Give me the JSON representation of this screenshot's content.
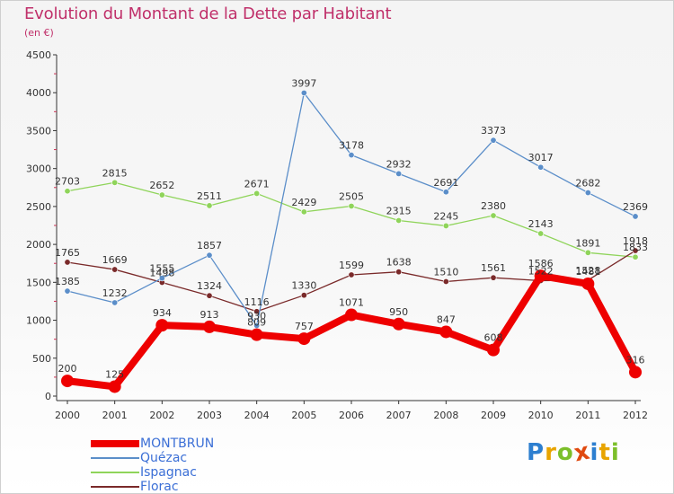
{
  "title": "Evolution du Montant de la Dette par Habitant",
  "subtitle": "(en €)",
  "logo": {
    "letters": [
      "P",
      "r",
      "o",
      "x",
      "i",
      "t",
      "i"
    ],
    "colors": [
      "#2d7fd0",
      "#e8a400",
      "#7cbf2a",
      "#e04a10",
      "#2d7fd0",
      "#e8a400",
      "#7cbf2a"
    ]
  },
  "chart_data": {
    "type": "line",
    "x": [
      "2000",
      "2001",
      "2002",
      "2003",
      "2004",
      "2005",
      "2006",
      "2007",
      "2008",
      "2009",
      "2010",
      "2011",
      "2012"
    ],
    "ylim": [
      0,
      4500
    ],
    "yticks": [
      0,
      500,
      1000,
      1500,
      2000,
      2500,
      3000,
      3500,
      4000,
      4500
    ],
    "grid": false,
    "legend_position": "bottom-left",
    "series": [
      {
        "name": "MONTBRUN",
        "color": "#ee0000",
        "values": [
          200,
          125,
          934,
          913,
          809,
          757,
          1071,
          950,
          847,
          608,
          1586,
          1481,
          316
        ],
        "labels": [
          "200",
          "125",
          "934",
          "913",
          "809",
          "757",
          "1071",
          "950",
          "847",
          "608",
          "1586",
          "1481",
          "316"
        ]
      },
      {
        "name": "Quézac",
        "color": "#5b8ec9",
        "values": [
          1385,
          1232,
          1555,
          1857,
          930,
          3997,
          3178,
          2932,
          2691,
          3373,
          3017,
          2682,
          2369
        ],
        "labels": [
          "1385",
          "1232",
          "1555",
          "1857",
          "930",
          "3997",
          "3178",
          "2932",
          "2691",
          "3373",
          "3017",
          "2682",
          "2369"
        ]
      },
      {
        "name": "Ispagnac",
        "color": "#8fd45a",
        "values": [
          2703,
          2815,
          2652,
          2511,
          2671,
          2429,
          2505,
          2315,
          2245,
          2380,
          2143,
          1891,
          1833
        ],
        "labels": [
          "2703",
          "2815",
          "2652",
          "2511",
          "2671",
          "2429",
          "2505",
          "2315",
          "2245",
          "2380",
          "2143",
          "1891",
          "1833"
        ]
      },
      {
        "name": "Florac",
        "color": "#7a2a2a",
        "values": [
          1765,
          1669,
          1498,
          1324,
          1116,
          1330,
          1599,
          1638,
          1510,
          1561,
          1522,
          1528,
          1918
        ],
        "labels": [
          "1765",
          "1669",
          "1498",
          "1324",
          "1116",
          "1330",
          "1599",
          "1638",
          "1510",
          "1561",
          "1522",
          "1528",
          "1918"
        ]
      }
    ]
  }
}
